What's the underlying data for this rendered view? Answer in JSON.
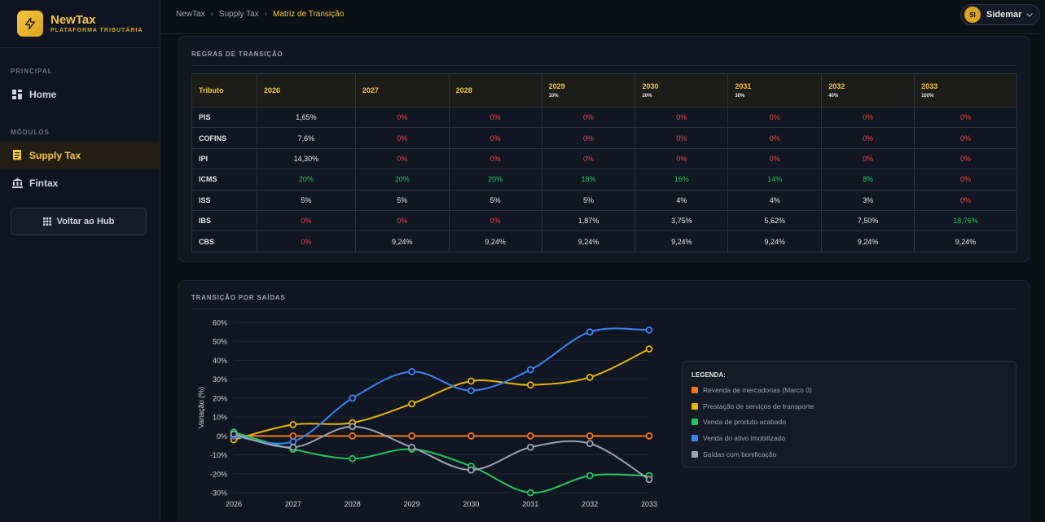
{
  "brand": {
    "name": "NewTax",
    "subtitle": "PLATAFORMA TRIBUTÁRIA"
  },
  "sidebar": {
    "sections": {
      "principal": "PRINCIPAL",
      "modulos": "MÓDULOS"
    },
    "items": [
      {
        "label": "Home",
        "icon": "dashboard-icon"
      },
      {
        "label": "Supply Tax",
        "icon": "receipt-icon",
        "active": true
      },
      {
        "label": "Fintax",
        "icon": "bank-icon"
      }
    ],
    "hub_button": "Voltar ao Hub"
  },
  "topbar": {
    "breadcrumb": [
      "NewTax",
      "Supply Tax",
      "Matriz de Transição"
    ],
    "user": {
      "initials": "SI",
      "name": "Sidemar"
    }
  },
  "rules_panel": {
    "title": "REGRAS DE TRANSIÇÃO",
    "headers": [
      {
        "label": "Tributo",
        "pct": ""
      },
      {
        "label": "2026",
        "pct": ""
      },
      {
        "label": "2027",
        "pct": ""
      },
      {
        "label": "2028",
        "pct": ""
      },
      {
        "label": "2029",
        "pct": "10%"
      },
      {
        "label": "2030",
        "pct": "20%"
      },
      {
        "label": "2031",
        "pct": "30%"
      },
      {
        "label": "2032",
        "pct": "40%"
      },
      {
        "label": "2033",
        "pct": "100%"
      }
    ],
    "rows": [
      {
        "tributo": "PIS",
        "values": [
          "1,65%",
          "0%",
          "0%",
          "0%",
          "0%",
          "0%",
          "0%",
          "0%"
        ]
      },
      {
        "tributo": "COFINS",
        "values": [
          "7,6%",
          "0%",
          "0%",
          "0%",
          "0%",
          "0%",
          "0%",
          "0%"
        ]
      },
      {
        "tributo": "IPI",
        "values": [
          "14,30%",
          "0%",
          "0%",
          "0%",
          "0%",
          "0%",
          "0%",
          "0%"
        ]
      },
      {
        "tributo": "ICMS",
        "values": [
          "20%",
          "20%",
          "20%",
          "18%",
          "16%",
          "14%",
          "8%",
          "0%"
        ]
      },
      {
        "tributo": "ISS",
        "values": [
          "5%",
          "5%",
          "5%",
          "5%",
          "4%",
          "4%",
          "3%",
          "0%"
        ]
      },
      {
        "tributo": "IBS",
        "values": [
          "0%",
          "0%",
          "0%",
          "1,87%",
          "3,75%",
          "5,62%",
          "7,50%",
          "18,76%"
        ]
      },
      {
        "tributo": "CBS",
        "values": [
          "0%",
          "9,24%",
          "9,24%",
          "9,24%",
          "9,24%",
          "9,24%",
          "9,24%",
          "9,24%"
        ]
      }
    ],
    "cell_colors": [
      [
        "white",
        "red",
        "red",
        "red",
        "red",
        "red",
        "red",
        "red"
      ],
      [
        "white",
        "red",
        "red",
        "red",
        "red",
        "red",
        "red",
        "red"
      ],
      [
        "white",
        "red",
        "red",
        "red",
        "red",
        "red",
        "red",
        "red"
      ],
      [
        "green",
        "green",
        "green",
        "green",
        "green",
        "green",
        "green",
        "red"
      ],
      [
        "white",
        "white",
        "white",
        "white",
        "white",
        "white",
        "white",
        "red"
      ],
      [
        "red",
        "red",
        "red",
        "white",
        "white",
        "white",
        "white",
        "green"
      ],
      [
        "red",
        "white",
        "white",
        "white",
        "white",
        "white",
        "white",
        "white"
      ]
    ]
  },
  "chart_panel": {
    "title": "TRANSIÇÃO POR SAÍDAS",
    "legend_title": "LEGENDA:"
  },
  "chart_data": {
    "type": "line",
    "ylabel": "Variação (%)",
    "xlabel": "",
    "categories": [
      "2026",
      "2027",
      "2028",
      "2029",
      "2030",
      "2031",
      "2032",
      "2033"
    ],
    "ylim": [
      -30,
      60
    ],
    "yticks": [
      "60%",
      "50%",
      "40%",
      "30%",
      "20%",
      "10%",
      "0%",
      "-10%",
      "-20%",
      "-30%"
    ],
    "grid": true,
    "legend_position": "right",
    "series": [
      {
        "name": "Revenda de mercadorias (Marco 0)",
        "color": "#f97316",
        "values": [
          0,
          0,
          0,
          0,
          0,
          0,
          0,
          0
        ]
      },
      {
        "name": "Prestação de serviços de transporte",
        "color": "#eab308",
        "values": [
          -2,
          6,
          7,
          17,
          29,
          27,
          31,
          46
        ]
      },
      {
        "name": "Venda de produto acabado",
        "color": "#22c55e",
        "values": [
          2,
          -7,
          -12,
          -7,
          -16,
          -30,
          -21,
          -21
        ]
      },
      {
        "name": "Venda do ativo imobilizado",
        "color": "#3b82f6",
        "values": [
          0,
          -3,
          20,
          34,
          24,
          35,
          55,
          56
        ]
      },
      {
        "name": "Saídas com bonificação",
        "color": "#9ca3af",
        "values": [
          1,
          -6,
          5,
          -6,
          -18,
          -6,
          -4,
          -23
        ]
      }
    ]
  }
}
